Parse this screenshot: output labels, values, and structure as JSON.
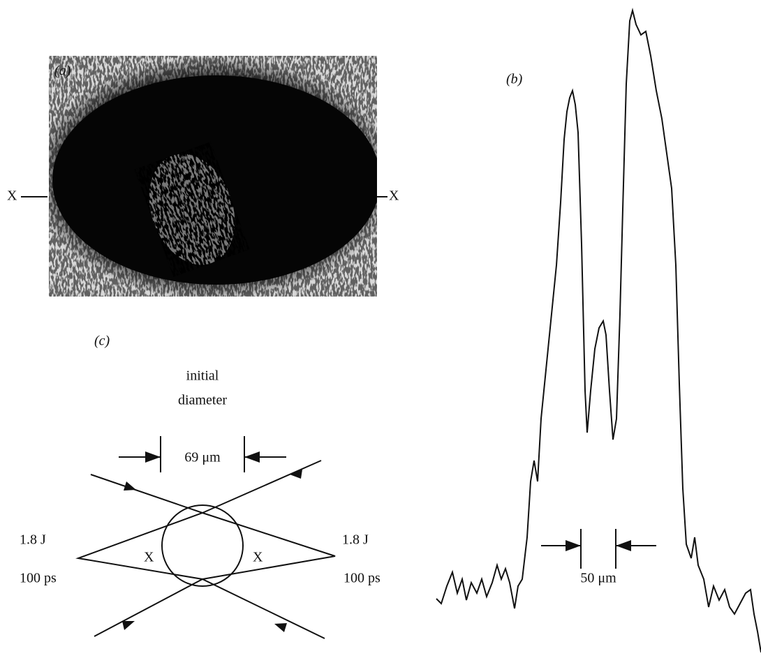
{
  "panel_a": {
    "label": "(a)",
    "left_marker": "X",
    "right_marker": "X"
  },
  "panel_b": {
    "label": "(b)",
    "scale_label": "50 μm"
  },
  "panel_c": {
    "label": "(c)",
    "title_lines": [
      "initial",
      "diameter"
    ],
    "width_label": "69 μm",
    "left_energy": "1.8 J",
    "left_duration": "100 ps",
    "right_energy": "1.8 J",
    "right_duration": "100 ps",
    "left_region": "X",
    "right_region": "X"
  }
}
